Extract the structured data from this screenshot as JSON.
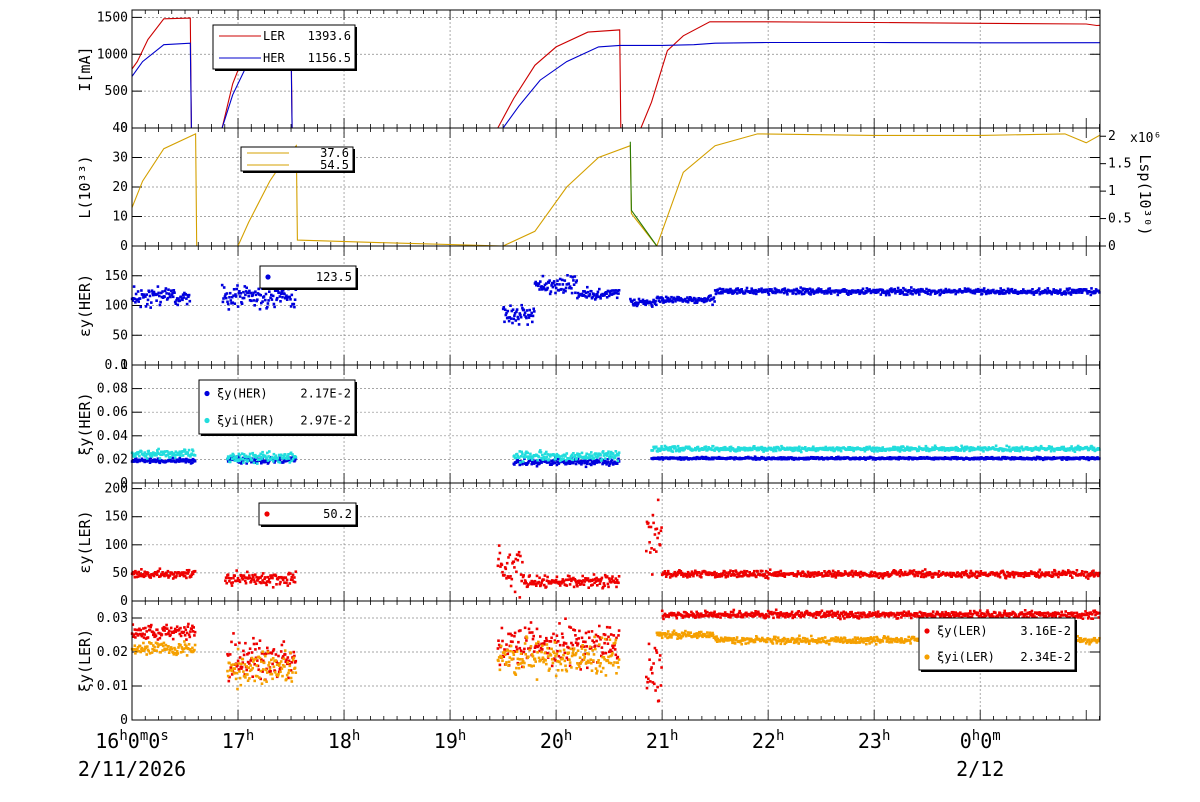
{
  "chart_data": [
    {
      "type": "line",
      "id": "current",
      "ylabel": "I[mA]",
      "ylim": [
        0,
        1600
      ],
      "yticks": [
        "0",
        "500",
        "1000",
        "1500"
      ],
      "grid": true,
      "legend": [
        {
          "name": "LER",
          "value": "1393.6",
          "color": "#cc0000"
        },
        {
          "name": "HER",
          "value": "1156.5",
          "color": "#0000cc"
        }
      ],
      "series": [
        {
          "name": "LER",
          "color": "#cc0000",
          "points": [
            [
              0,
              800
            ],
            [
              0.05,
              900
            ],
            [
              0.15,
              1200
            ],
            [
              0.3,
              1480
            ],
            [
              0.55,
              1490
            ],
            [
              0.56,
              0
            ],
            [
              0.85,
              0
            ],
            [
              0.95,
              600
            ],
            [
              1.1,
              1150
            ],
            [
              1.3,
              1300
            ],
            [
              1.5,
              1340
            ],
            [
              1.51,
              0
            ],
            [
              3.45,
              0
            ],
            [
              3.6,
              400
            ],
            [
              3.8,
              850
            ],
            [
              4.0,
              1100
            ],
            [
              4.3,
              1300
            ],
            [
              4.6,
              1330
            ],
            [
              4.61,
              0
            ],
            [
              4.8,
              0
            ],
            [
              4.9,
              350
            ],
            [
              5.05,
              1050
            ],
            [
              5.2,
              1250
            ],
            [
              5.45,
              1440
            ],
            [
              6.0,
              1440
            ],
            [
              7.0,
              1430
            ],
            [
              8.0,
              1420
            ],
            [
              9.0,
              1410
            ],
            [
              9.1,
              1390
            ],
            [
              9.13,
              1393
            ]
          ]
        },
        {
          "name": "HER",
          "color": "#0000cc",
          "points": [
            [
              0,
              700
            ],
            [
              0.1,
              900
            ],
            [
              0.3,
              1130
            ],
            [
              0.55,
              1150
            ],
            [
              0.56,
              0
            ],
            [
              0.85,
              0
            ],
            [
              0.95,
              450
            ],
            [
              1.1,
              900
            ],
            [
              1.3,
              1080
            ],
            [
              1.5,
              1110
            ],
            [
              1.51,
              0
            ],
            [
              3.5,
              0
            ],
            [
              3.65,
              300
            ],
            [
              3.85,
              650
            ],
            [
              4.1,
              900
            ],
            [
              4.4,
              1100
            ],
            [
              4.6,
              1120
            ],
            [
              4.61,
              1120
            ],
            [
              5.0,
              1120
            ],
            [
              5.3,
              1130
            ],
            [
              5.5,
              1150
            ],
            [
              6.0,
              1160
            ],
            [
              7.0,
              1160
            ],
            [
              8.0,
              1155
            ],
            [
              9.13,
              1156
            ]
          ]
        }
      ]
    },
    {
      "type": "line",
      "id": "luminosity",
      "ylabel": "L(10³³)",
      "ylim": [
        0,
        40
      ],
      "yticks": [
        "0",
        "10",
        "20",
        "30",
        "40"
      ],
      "y2label": "Lsp(10³⁰)",
      "y2lim": [
        0,
        2.15
      ],
      "y2ticks": [
        "0",
        "0.5",
        "1",
        "1.5",
        "2"
      ],
      "y2exp": "x10⁶",
      "grid": true,
      "legend": [
        {
          "name": "",
          "value": "37.6",
          "color": "#d4a000"
        },
        {
          "name": "",
          "value": "54.5",
          "color": "#d4a000"
        }
      ],
      "series": [
        {
          "name": "L",
          "color": "#d4a000",
          "points": [
            [
              0,
              13
            ],
            [
              0.1,
              22
            ],
            [
              0.3,
              33
            ],
            [
              0.6,
              38
            ],
            [
              0.61,
              0
            ],
            [
              1.0,
              0
            ],
            [
              1.1,
              8
            ],
            [
              1.3,
              22
            ],
            [
              1.45,
              30
            ],
            [
              1.55,
              34
            ],
            [
              1.56,
              2
            ],
            [
              2.5,
              1
            ],
            [
              3.5,
              0
            ],
            [
              3.8,
              5
            ],
            [
              4.1,
              20
            ],
            [
              4.4,
              30
            ],
            [
              4.7,
              34
            ],
            [
              4.71,
              11
            ],
            [
              4.95,
              0
            ],
            [
              5.0,
              5
            ],
            [
              5.2,
              25
            ],
            [
              5.5,
              34
            ],
            [
              5.9,
              38
            ],
            [
              7.0,
              37.5
            ],
            [
              8.0,
              37.5
            ],
            [
              8.8,
              38
            ],
            [
              9.0,
              35
            ],
            [
              9.13,
              37.6
            ]
          ]
        },
        {
          "name": "Lsp",
          "color": "#2a7a00",
          "points": [
            [
              4.7,
              1.9
            ],
            [
              4.71,
              0.65
            ],
            [
              4.95,
              0
            ]
          ]
        }
      ]
    },
    {
      "type": "scatter",
      "id": "emit_her",
      "ylabel": "εy(HER)",
      "ylim": [
        0,
        200
      ],
      "yticks": [
        "0",
        "50",
        "100",
        "150"
      ],
      "grid": true,
      "legend": [
        {
          "name": "",
          "value": "123.5",
          "color": "#0000dd"
        }
      ],
      "series": [
        {
          "name": "HER",
          "color": "#0000dd",
          "segments": [
            [
              0,
              0.55,
              115,
              15
            ],
            [
              0.85,
              1.55,
              115,
              20
            ],
            [
              3.5,
              3.8,
              85,
              15
            ],
            [
              3.8,
              4.2,
              135,
              15
            ],
            [
              4.2,
              4.6,
              120,
              8
            ],
            [
              4.7,
              4.95,
              105,
              6
            ],
            [
              4.95,
              5.5,
              110,
              6
            ],
            [
              5.5,
              9.13,
              124,
              5
            ]
          ]
        }
      ]
    },
    {
      "type": "scatter",
      "id": "xi_her",
      "ylabel": "ξy(HER)",
      "ylim": [
        0,
        0.1
      ],
      "yticks": [
        "0",
        "0.02",
        "0.04",
        "0.06",
        "0.08",
        "0.1"
      ],
      "grid": true,
      "legend": [
        {
          "name": "ξy(HER)",
          "value": "2.17E-2",
          "color": "#0000dd"
        },
        {
          "name": "ξyi(HER)",
          "value": "2.97E-2",
          "color": "#22dddd"
        }
      ],
      "series": [
        {
          "name": "ξy(HER)",
          "color": "#0000dd",
          "segments": [
            [
              0,
              0.6,
              0.019,
              0.002
            ],
            [
              0.9,
              1.55,
              0.02,
              0.003
            ],
            [
              3.6,
              4.6,
              0.018,
              0.003
            ],
            [
              4.9,
              9.13,
              0.021,
              0.001
            ]
          ]
        },
        {
          "name": "ξyi(HER)",
          "color": "#22dddd",
          "segments": [
            [
              0,
              0.6,
              0.025,
              0.004
            ],
            [
              0.9,
              1.55,
              0.022,
              0.004
            ],
            [
              3.6,
              4.6,
              0.023,
              0.004
            ],
            [
              4.9,
              9.13,
              0.029,
              0.002
            ]
          ]
        }
      ]
    },
    {
      "type": "scatter",
      "id": "emit_ler",
      "ylabel": "εy(LER)",
      "ylim": [
        0,
        210
      ],
      "yticks": [
        "0",
        "50",
        "100",
        "150",
        "200"
      ],
      "grid": true,
      "legend": [
        {
          "name": "",
          "value": "50.2",
          "color": "#ee0000"
        }
      ],
      "series": [
        {
          "name": "LER",
          "color": "#ee0000",
          "segments": [
            [
              0,
              0.6,
              48,
              8
            ],
            [
              0.88,
              1.55,
              40,
              12
            ],
            [
              3.45,
              3.7,
              60,
              40
            ],
            [
              3.7,
              4.6,
              35,
              10
            ],
            [
              4.85,
              5.0,
              120,
              60
            ],
            [
              5.0,
              9.13,
              48,
              6
            ]
          ]
        }
      ]
    },
    {
      "type": "scatter",
      "id": "xi_ler",
      "ylabel": "ξy(LER)",
      "ylim": [
        0,
        0.035
      ],
      "yticks": [
        "0",
        "0.01",
        "0.02",
        "0.03"
      ],
      "grid": true,
      "legend": [
        {
          "name": "ξy(LER)",
          "value": "3.16E-2",
          "color": "#ee0000"
        },
        {
          "name": "ξyi(LER)",
          "value": "2.34E-2",
          "color": "#f5a000"
        }
      ],
      "series": [
        {
          "name": "ξy(LER)",
          "color": "#ee0000",
          "segments": [
            [
              0,
              0.6,
              0.026,
              0.002
            ],
            [
              0.9,
              1.55,
              0.018,
              0.006
            ],
            [
              3.45,
              4.6,
              0.022,
              0.006
            ],
            [
              4.85,
              5.0,
              0.015,
              0.01
            ],
            [
              5.0,
              9.13,
              0.031,
              0.001
            ]
          ]
        },
        {
          "name": "ξyi(LER)",
          "color": "#f5a000",
          "segments": [
            [
              0,
              0.6,
              0.021,
              0.002
            ],
            [
              0.9,
              1.55,
              0.015,
              0.005
            ],
            [
              3.45,
              4.6,
              0.018,
              0.005
            ],
            [
              4.95,
              5.5,
              0.025,
              0.001
            ],
            [
              5.5,
              9.13,
              0.0235,
              0.001
            ]
          ]
        }
      ]
    }
  ],
  "x_axis": {
    "range_hours": [
      16,
      25.13
    ],
    "labels": [
      {
        "hour": 16,
        "base": "16",
        "sup": "h",
        "more": [
          {
            "b": "0",
            "s": "m"
          },
          {
            "b": "0",
            "s": "s"
          }
        ],
        "date": "2/11/2026"
      },
      {
        "hour": 17,
        "base": "17",
        "sup": "h"
      },
      {
        "hour": 18,
        "base": "18",
        "sup": "h"
      },
      {
        "hour": 19,
        "base": "19",
        "sup": "h"
      },
      {
        "hour": 20,
        "base": "20",
        "sup": "h"
      },
      {
        "hour": 21,
        "base": "21",
        "sup": "h"
      },
      {
        "hour": 22,
        "base": "22",
        "sup": "h"
      },
      {
        "hour": 23,
        "base": "23",
        "sup": "h"
      },
      {
        "hour": 24,
        "base": "0",
        "sup": "h",
        "more": [
          {
            "b": "0",
            "s": "m"
          }
        ],
        "date": "2/12"
      }
    ]
  }
}
